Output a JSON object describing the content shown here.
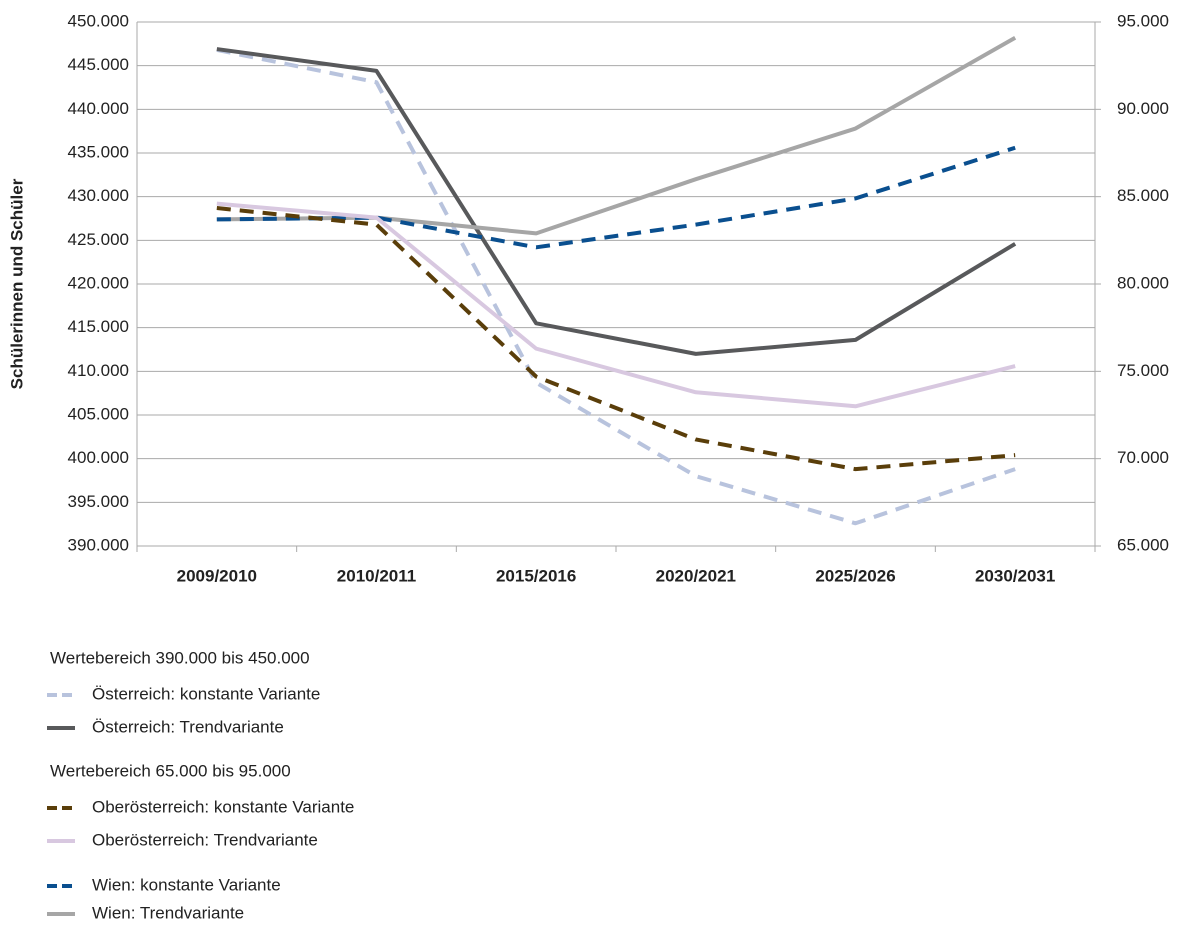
{
  "chart_data": {
    "type": "line",
    "y_label": "Schülerinnen und Schüler",
    "categories": [
      "2009/2010",
      "2010/2011",
      "2015/2016",
      "2020/2021",
      "2025/2026",
      "2030/2031"
    ],
    "ylim": [
      390000,
      450000
    ],
    "yticks": [
      {
        "value": 390000,
        "label": "390.000"
      },
      {
        "value": 395000,
        "label": "395.000"
      },
      {
        "value": 400000,
        "label": "400.000"
      },
      {
        "value": 405000,
        "label": "405.000"
      },
      {
        "value": 410000,
        "label": "410.000"
      },
      {
        "value": 415000,
        "label": "415.000"
      },
      {
        "value": 420000,
        "label": "420.000"
      },
      {
        "value": 425000,
        "label": "425.000"
      },
      {
        "value": 430000,
        "label": "430.000"
      },
      {
        "value": 435000,
        "label": "435.000"
      },
      {
        "value": 440000,
        "label": "440.000"
      },
      {
        "value": 445000,
        "label": "445.000"
      },
      {
        "value": 450000,
        "label": "450.000"
      }
    ],
    "y2lim": [
      65000,
      95000
    ],
    "y2ticks": [
      {
        "value": 65000,
        "label": "65.000"
      },
      {
        "value": 70000,
        "label": "70.000"
      },
      {
        "value": 75000,
        "label": "75.000"
      },
      {
        "value": 80000,
        "label": "80.000"
      },
      {
        "value": 85000,
        "label": "85.000"
      },
      {
        "value": 90000,
        "label": "90.000"
      },
      {
        "value": 95000,
        "label": "95.000"
      }
    ],
    "grid": true,
    "legend_headings": [
      "Wertebereich 390.000 bis 450.000",
      "Wertebereich 65.000 bis 95.000"
    ],
    "series": [
      {
        "name": "Österreich: konstante Variante",
        "color": "#b8c3dd",
        "dashed": true,
        "values": [
          446800,
          443100,
          408700,
          398000,
          392600,
          398800
        ]
      },
      {
        "name": "Österreich: Trendvariante",
        "color": "#58595b",
        "dashed": false,
        "values": [
          446900,
          444400,
          415500,
          412000,
          413600,
          424600
        ]
      },
      {
        "name": "Oberösterreich: konstante Variante",
        "color": "#5a3e0a",
        "dashed": true,
        "axis": "y2",
        "values": [
          84350,
          83400,
          74700,
          71100,
          69400,
          70200
        ]
      },
      {
        "name": "Oberösterreich: Trendvariante",
        "color": "#d8c8e0",
        "dashed": false,
        "axis": "y2",
        "values": [
          84600,
          83800,
          76300,
          73800,
          73000,
          75300
        ]
      },
      {
        "name": "Wien: konstante Variante",
        "color": "#0a4f8f",
        "dashed": true,
        "axis": "y2",
        "values": [
          83700,
          83800,
          82100,
          83400,
          84900,
          87800
        ]
      },
      {
        "name": "Wien: Trendvariante",
        "color": "#a6a6a6",
        "dashed": false,
        "axis": "y2",
        "values": [
          83700,
          83800,
          82900,
          86000,
          88900,
          94100
        ]
      }
    ]
  }
}
